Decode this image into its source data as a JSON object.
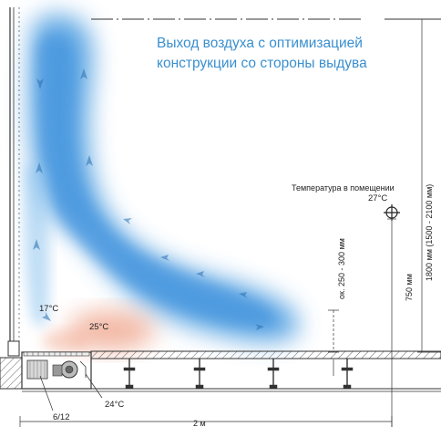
{
  "caption": {
    "line1": "Выход воздуха с оптимизацией",
    "line2": "конструкции со стороны выдува"
  },
  "room_temperature": {
    "label": "Температура в помещении",
    "value": "27°C"
  },
  "dimensions": {
    "total_height": "1800 мм (1500 - 2100 мм)",
    "sensor_height": "750 мм",
    "jet_height": "ок. 250 - 300 мм",
    "width": "2 м"
  },
  "temperatures": {
    "near_wall": "17°C",
    "floor_zone": "25°C",
    "inlet": "24°C"
  },
  "unit_label": "6/12",
  "colors": {
    "airflow": "#4a9be0",
    "warm_zone": "#ea8a6a",
    "caption": "#3a8fcf"
  }
}
